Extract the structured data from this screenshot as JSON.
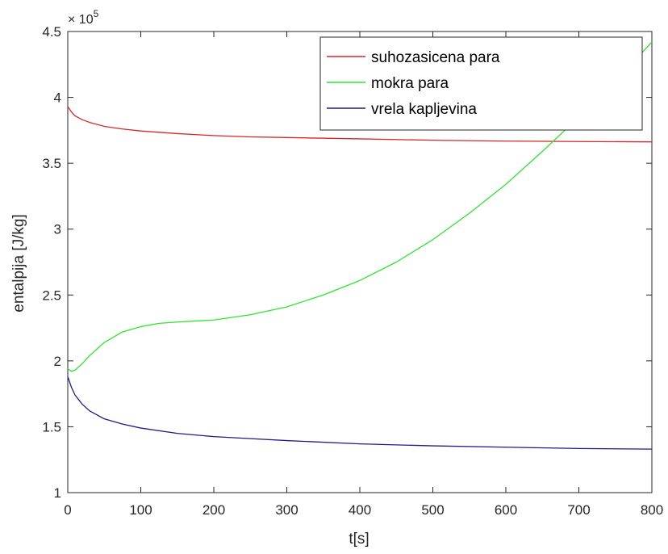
{
  "chart_data": {
    "type": "line",
    "xlabel": "t[s]",
    "ylabel": "entalpija [J/kg]",
    "y_multiplier_label": "× 10",
    "y_multiplier_exponent": "5",
    "xlim": [
      0,
      800
    ],
    "ylim": [
      1,
      4.5
    ],
    "xticks": [
      0,
      100,
      200,
      300,
      400,
      500,
      600,
      700,
      800
    ],
    "yticks": [
      1,
      1.5,
      2,
      2.5,
      3,
      3.5,
      4,
      4.5
    ],
    "xtick_labels": [
      "0",
      "100",
      "200",
      "300",
      "400",
      "500",
      "600",
      "700",
      "800"
    ],
    "ytick_labels": [
      "1",
      "1.5",
      "2",
      "2.5",
      "3",
      "3.5",
      "4",
      "4.5"
    ],
    "grid": false,
    "legend_position": "top-right",
    "series": [
      {
        "name": "suhozasicena para",
        "color": "#d62728",
        "x": [
          0,
          5,
          10,
          20,
          30,
          50,
          75,
          100,
          150,
          200,
          250,
          300,
          400,
          500,
          600,
          700,
          800
        ],
        "y": [
          3.93,
          3.89,
          3.86,
          3.83,
          3.81,
          3.78,
          3.76,
          3.745,
          3.725,
          3.71,
          3.7,
          3.695,
          3.685,
          3.675,
          3.668,
          3.665,
          3.662
        ]
      },
      {
        "name": "mokra para",
        "color": "#2ee62e",
        "x": [
          0,
          5,
          10,
          20,
          30,
          50,
          75,
          100,
          125,
          150,
          200,
          250,
          300,
          350,
          400,
          450,
          500,
          550,
          600,
          650,
          700,
          750,
          800
        ],
        "y": [
          1.94,
          1.92,
          1.93,
          1.98,
          2.04,
          2.14,
          2.22,
          2.26,
          2.285,
          2.295,
          2.31,
          2.35,
          2.41,
          2.5,
          2.61,
          2.75,
          2.92,
          3.12,
          3.34,
          3.59,
          3.85,
          4.12,
          4.42
        ]
      },
      {
        "name": "vrela kapljevina",
        "color": "#1c1c8c",
        "x": [
          0,
          5,
          10,
          20,
          30,
          50,
          75,
          100,
          150,
          200,
          250,
          300,
          400,
          500,
          600,
          700,
          800
        ],
        "y": [
          1.88,
          1.8,
          1.74,
          1.67,
          1.62,
          1.56,
          1.52,
          1.49,
          1.45,
          1.425,
          1.41,
          1.395,
          1.37,
          1.355,
          1.345,
          1.335,
          1.33
        ]
      }
    ]
  }
}
